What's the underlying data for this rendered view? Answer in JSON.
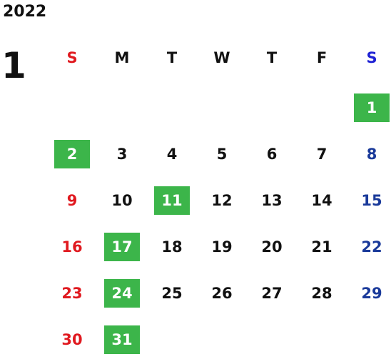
{
  "year": "2022",
  "month": "1",
  "weekdays": [
    {
      "label": "S",
      "color": "#e0191f"
    },
    {
      "label": "M",
      "color": "#111111"
    },
    {
      "label": "T",
      "color": "#111111"
    },
    {
      "label": "W",
      "color": "#111111"
    },
    {
      "label": "T",
      "color": "#111111"
    },
    {
      "label": "F",
      "color": "#111111"
    },
    {
      "label": "S",
      "color": "#1f22d4"
    }
  ],
  "colors": {
    "sunday": "#e0191f",
    "saturday": "#1a3a9a",
    "weekday": "#111111",
    "highlight": "#3cb54a"
  },
  "weeks": [
    [
      null,
      null,
      null,
      null,
      null,
      null,
      {
        "d": "1",
        "hl": true
      }
    ],
    [
      {
        "d": "2",
        "hl": true
      },
      {
        "d": "3"
      },
      {
        "d": "4"
      },
      {
        "d": "5"
      },
      {
        "d": "6"
      },
      {
        "d": "7"
      },
      {
        "d": "8"
      }
    ],
    [
      {
        "d": "9"
      },
      {
        "d": "10"
      },
      {
        "d": "11",
        "hl": true
      },
      {
        "d": "12"
      },
      {
        "d": "13"
      },
      {
        "d": "14"
      },
      {
        "d": "15"
      }
    ],
    [
      {
        "d": "16"
      },
      {
        "d": "17",
        "hl": true
      },
      {
        "d": "18"
      },
      {
        "d": "19"
      },
      {
        "d": "20"
      },
      {
        "d": "21"
      },
      {
        "d": "22"
      }
    ],
    [
      {
        "d": "23"
      },
      {
        "d": "24",
        "hl": true
      },
      {
        "d": "25"
      },
      {
        "d": "26"
      },
      {
        "d": "27"
      },
      {
        "d": "28"
      },
      {
        "d": "29"
      }
    ],
    [
      {
        "d": "30"
      },
      {
        "d": "31",
        "hl": true
      },
      null,
      null,
      null,
      null,
      null
    ]
  ]
}
